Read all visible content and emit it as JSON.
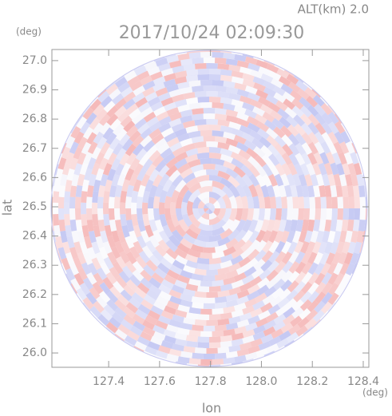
{
  "chart_data": {
    "type": "radar-ppi",
    "title": "2017/10/24 02:09:30",
    "altitude_label": "ALT(km) 2.0",
    "x_label": "lon",
    "y_label": "lat",
    "x_unit": "(deg)",
    "y_unit": "(deg)",
    "xlim": [
      127.177,
      128.422
    ],
    "ylim": [
      25.951,
      27.038
    ],
    "xticks": [
      127.4,
      127.6,
      127.8,
      {
        "value": 128,
        "label": "128.0"
      },
      128.2,
      128.4
    ],
    "yticks": [
      {
        "value": 26,
        "label": "26.0"
      },
      26.1,
      26.2,
      26.3,
      26.4,
      26.5,
      26.6,
      26.7,
      26.8,
      26.9,
      {
        "value": 27,
        "label": "27.0"
      }
    ]
  }
}
